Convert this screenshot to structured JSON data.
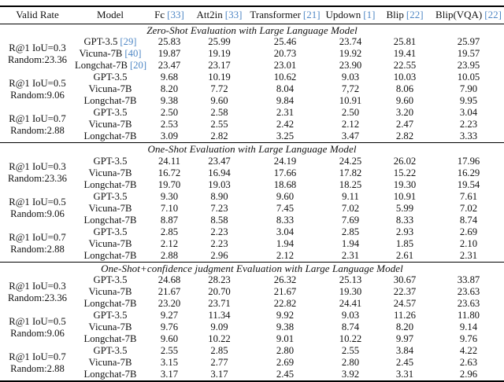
{
  "colors": {
    "citation": "#4f87c5",
    "text": "#111111",
    "rule": "#000000",
    "background": "#ffffff"
  },
  "table": {
    "columns": [
      {
        "label": "Valid Rate",
        "cite": ""
      },
      {
        "label": "Model",
        "cite": ""
      },
      {
        "label": "Fc",
        "cite": "[33]"
      },
      {
        "label": "Att2in",
        "cite": "[33]"
      },
      {
        "label": "Transformer",
        "cite": "[21]"
      },
      {
        "label": "Updown",
        "cite": "[1]"
      },
      {
        "label": "Blip",
        "cite": "[22]"
      },
      {
        "label": "Blip(VQA)",
        "cite": "[22]"
      }
    ],
    "sections": [
      {
        "title": "Zero-Shot Evaluation with Large Language Model",
        "groups": [
          {
            "valid_rate_line1": "R@1 IoU=0.3",
            "valid_rate_line2": "Random:23.36",
            "rows": [
              {
                "model": "GPT-3.5",
                "cite": "[29]",
                "values": [
                  "25.83",
                  "25.99",
                  "25.46",
                  "23.74",
                  "25.81",
                  "25.97"
                ]
              },
              {
                "model": "Vicuna-7B",
                "cite": "[40]",
                "values": [
                  "19.87",
                  "19.19",
                  "20.73",
                  "19.92",
                  "19.41",
                  "19.57"
                ]
              },
              {
                "model": "Longchat-7B",
                "cite": "[20]",
                "values": [
                  "23.47",
                  "23.17",
                  "23.01",
                  "23.90",
                  "22.55",
                  "23.95"
                ]
              }
            ]
          },
          {
            "valid_rate_line1": "R@1 IoU=0.5",
            "valid_rate_line2": "Random:9.06",
            "rows": [
              {
                "model": "GPT-3.5",
                "cite": "",
                "values": [
                  "9.68",
                  "10.19",
                  "10.62",
                  "9.03",
                  "10.03",
                  "10.05"
                ]
              },
              {
                "model": "Vicuna-7B",
                "cite": "",
                "values": [
                  "8.20",
                  "7.72",
                  "8.04",
                  "7,72",
                  "8.06",
                  "7.90"
                ]
              },
              {
                "model": "Longchat-7B",
                "cite": "",
                "values": [
                  "9.38",
                  "9.60",
                  "9.84",
                  "10.91",
                  "9.60",
                  "9.95"
                ]
              }
            ]
          },
          {
            "valid_rate_line1": "R@1 IoU=0.7",
            "valid_rate_line2": "Random:2.88",
            "rows": [
              {
                "model": "GPT-3.5",
                "cite": "",
                "values": [
                  "2.50",
                  "2.58",
                  "2.31",
                  "2.50",
                  "3.20",
                  "3.04"
                ]
              },
              {
                "model": "Vicuna-7B",
                "cite": "",
                "values": [
                  "2.53",
                  "2.55",
                  "2.42",
                  "2.12",
                  "2.47",
                  "2.23"
                ]
              },
              {
                "model": "Longchat-7B",
                "cite": "",
                "values": [
                  "3.09",
                  "2.82",
                  "3.25",
                  "3.47",
                  "2.82",
                  "3.33"
                ]
              }
            ]
          }
        ]
      },
      {
        "title": "One-Shot Evaluation with Large Language Model",
        "groups": [
          {
            "valid_rate_line1": "R@1 IoU=0.3",
            "valid_rate_line2": "Random:23.36",
            "rows": [
              {
                "model": "GPT-3.5",
                "cite": "",
                "values": [
                  "24.11",
                  "23.47",
                  "24.19",
                  "24.25",
                  "26.02",
                  "17.96"
                ]
              },
              {
                "model": "Vicuna-7B",
                "cite": "",
                "values": [
                  "16.72",
                  "16.94",
                  "17.66",
                  "17.82",
                  "15.22",
                  "16.29"
                ]
              },
              {
                "model": "Longchat-7B",
                "cite": "",
                "values": [
                  "19.70",
                  "19.03",
                  "18.68",
                  "18.25",
                  "19.30",
                  "19.54"
                ]
              }
            ]
          },
          {
            "valid_rate_line1": "R@1 IoU=0.5",
            "valid_rate_line2": "Random:9.06",
            "rows": [
              {
                "model": "GPT-3.5",
                "cite": "",
                "values": [
                  "9.30",
                  "8.90",
                  "9.60",
                  "9.11",
                  "10.91",
                  "7.61"
                ]
              },
              {
                "model": "Vicuna-7B",
                "cite": "",
                "values": [
                  "7.10",
                  "7.23",
                  "7.45",
                  "7.02",
                  "5.99",
                  "7.02"
                ]
              },
              {
                "model": "Longchat-7B",
                "cite": "",
                "values": [
                  "8.87",
                  "8.58",
                  "8.33",
                  "7.69",
                  "8.33",
                  "8.74"
                ]
              }
            ]
          },
          {
            "valid_rate_line1": "R@1 IoU=0.7",
            "valid_rate_line2": "Random:2.88",
            "rows": [
              {
                "model": "GPT-3.5",
                "cite": "",
                "values": [
                  "2.85",
                  "2.23",
                  "3.04",
                  "2.85",
                  "2.93",
                  "2.69"
                ]
              },
              {
                "model": "Vicuna-7B",
                "cite": "",
                "values": [
                  "2.12",
                  "2.23",
                  "1.94",
                  "1.94",
                  "1.85",
                  "2.10"
                ]
              },
              {
                "model": "Longchat-7B",
                "cite": "",
                "values": [
                  "2.88",
                  "2.96",
                  "2.12",
                  "2.31",
                  "2.61",
                  "2.31"
                ]
              }
            ]
          }
        ]
      },
      {
        "title": "One-Shot+confidence judgment Evaluation with Large Language Model",
        "groups": [
          {
            "valid_rate_line1": "R@1 IoU=0.3",
            "valid_rate_line2": "Random:23.36",
            "rows": [
              {
                "model": "GPT-3.5",
                "cite": "",
                "values": [
                  "24.68",
                  "28.23",
                  "26.32",
                  "25.13",
                  "30.67",
                  "33.87"
                ]
              },
              {
                "model": "Vicuna-7B",
                "cite": "",
                "values": [
                  "21.67",
                  "20.70",
                  "21.67",
                  "19.30",
                  "22.37",
                  "23.63"
                ]
              },
              {
                "model": "Longchat-7B",
                "cite": "",
                "values": [
                  "23.20",
                  "23.71",
                  "22.82",
                  "24.41",
                  "24.57",
                  "23.63"
                ]
              }
            ]
          },
          {
            "valid_rate_line1": "R@1 IoU=0.5",
            "valid_rate_line2": "Random:9.06",
            "rows": [
              {
                "model": "GPT-3.5",
                "cite": "",
                "values": [
                  "9.27",
                  "11.34",
                  "9.92",
                  "9.03",
                  "11.26",
                  "11.80"
                ]
              },
              {
                "model": "Vicuna-7B",
                "cite": "",
                "values": [
                  "9.76",
                  "9.09",
                  "9.38",
                  "8.74",
                  "8.20",
                  "9.14"
                ]
              },
              {
                "model": "Longchat-7B",
                "cite": "",
                "values": [
                  "9.60",
                  "10.22",
                  "9.01",
                  "10.22",
                  "9.97",
                  "9.76"
                ]
              }
            ]
          },
          {
            "valid_rate_line1": "R@1 IoU=0.7",
            "valid_rate_line2": "Random:2.88",
            "rows": [
              {
                "model": "GPT-3.5",
                "cite": "",
                "values": [
                  "2.55",
                  "2.85",
                  "2.80",
                  "2.55",
                  "3.84",
                  "4.22"
                ]
              },
              {
                "model": "Vicuna-7B",
                "cite": "",
                "values": [
                  "3.15",
                  "2.77",
                  "2.69",
                  "2.80",
                  "2.45",
                  "2.63"
                ]
              },
              {
                "model": "Longchat-7B",
                "cite": "",
                "values": [
                  "3.17",
                  "3.17",
                  "2.45",
                  "3.92",
                  "3.31",
                  "2.96"
                ]
              }
            ]
          }
        ]
      }
    ]
  }
}
